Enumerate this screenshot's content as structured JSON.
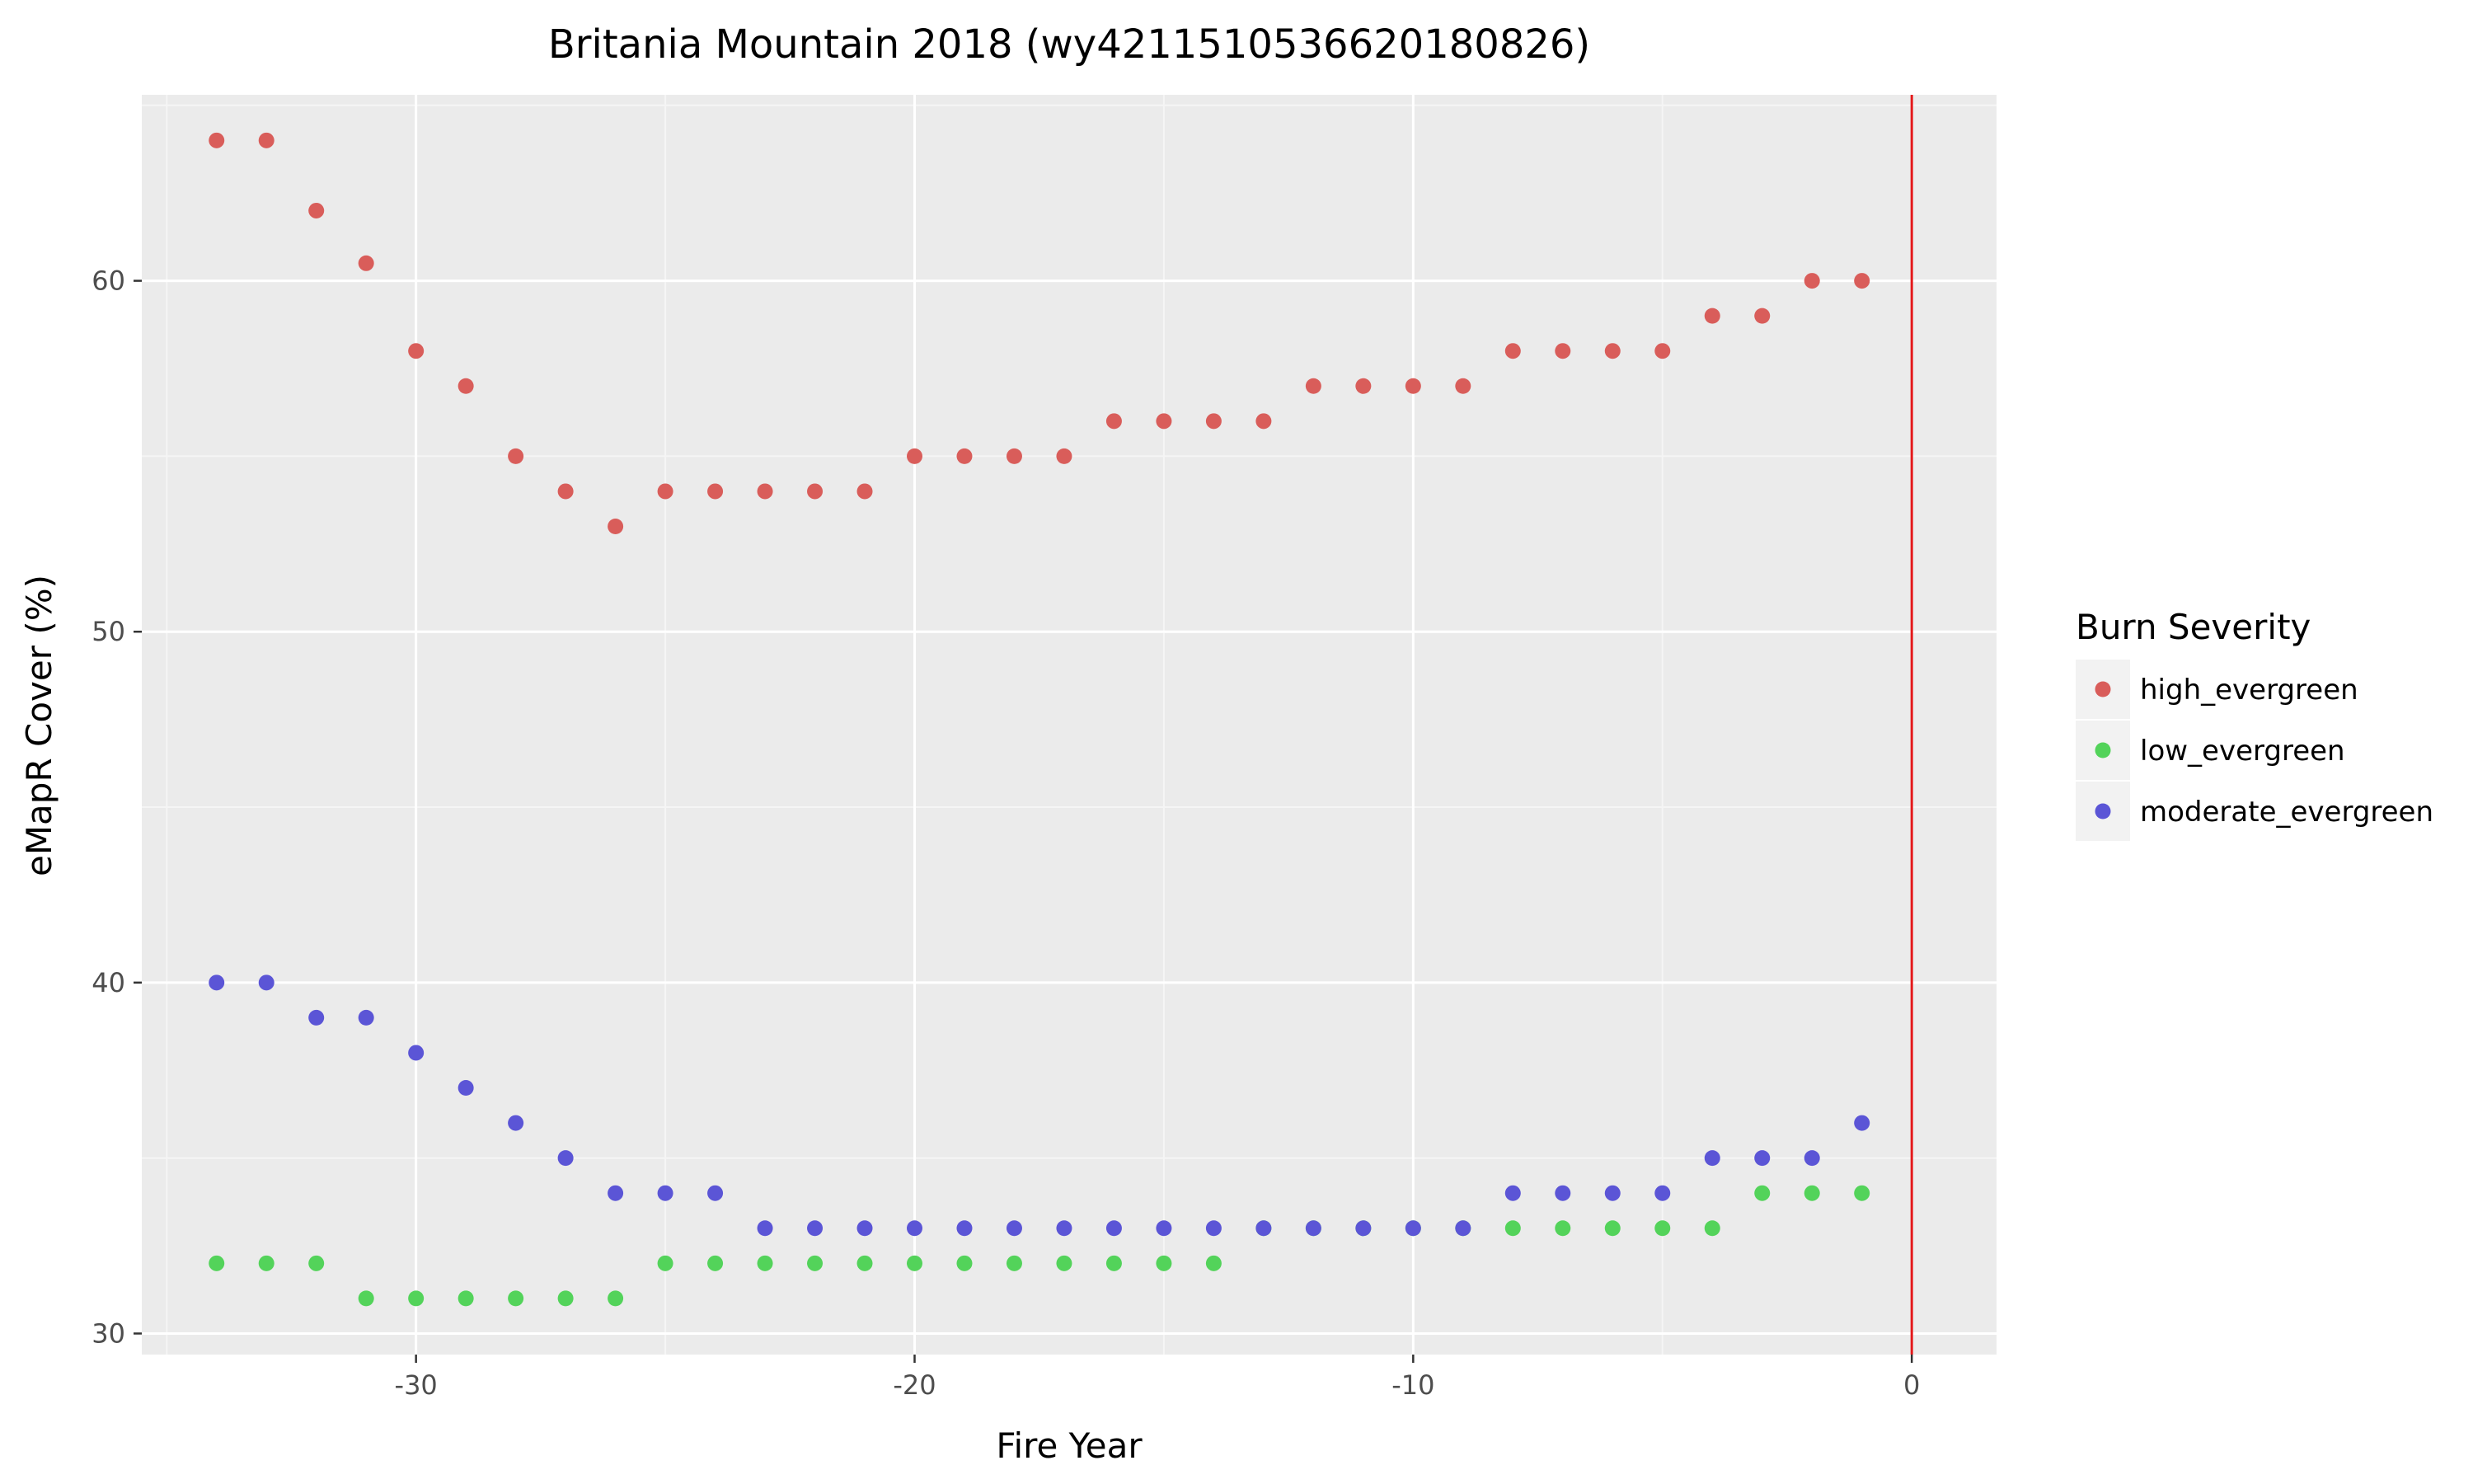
{
  "chart_data": {
    "type": "scatter",
    "title": "Britania Mountain 2018 (wy4211510536620180826)",
    "xlabel": "Fire Year",
    "ylabel": "eMapR Cover (%)",
    "xlim": [
      -35.5,
      1.7
    ],
    "ylim": [
      29.4,
      65.3
    ],
    "x_ticks": [
      -30,
      -20,
      -10,
      0
    ],
    "x_tick_labels": [
      "-30",
      "-20",
      "-10",
      "0"
    ],
    "y_ticks": [
      30,
      40,
      50,
      60
    ],
    "y_tick_labels": [
      "30",
      "40",
      "50",
      "60"
    ],
    "grid": true,
    "background": "#ebebeb",
    "vline": {
      "x": 0,
      "color": "#e41a1c"
    },
    "legend": {
      "title": "Burn Severity",
      "position": "right"
    },
    "series": [
      {
        "name": "high_evergreen",
        "color": "#d95d5a",
        "x": [
          -34,
          -33,
          -32,
          -31,
          -30,
          -29,
          -28,
          -27,
          -26,
          -25,
          -24,
          -23,
          -22,
          -21,
          -20,
          -19,
          -18,
          -17,
          -16,
          -15,
          -14,
          -13,
          -12,
          -11,
          -10,
          -9,
          -8,
          -7,
          -6,
          -5,
          -4,
          -3,
          -2,
          -1
        ],
        "y": [
          64,
          64,
          62,
          60.5,
          58,
          57,
          55,
          54,
          53,
          54,
          54,
          54,
          54,
          54,
          55,
          55,
          55,
          55,
          56,
          56,
          56,
          56,
          57,
          57,
          57,
          57,
          58,
          58,
          58,
          58,
          59,
          59,
          60,
          60
        ]
      },
      {
        "name": "low_evergreen",
        "color": "#53d35a",
        "x": [
          -34,
          -33,
          -32,
          -31,
          -30,
          -29,
          -28,
          -27,
          -26,
          -25,
          -24,
          -23,
          -22,
          -21,
          -20,
          -19,
          -18,
          -17,
          -16,
          -15,
          -14,
          -13,
          -12,
          -11,
          -10,
          -9,
          -8,
          -7,
          -6,
          -5,
          -4,
          -3,
          -2,
          -1
        ],
        "y": [
          32,
          32,
          32,
          31,
          31,
          31,
          31,
          31,
          31,
          32,
          32,
          32,
          32,
          32,
          32,
          32,
          32,
          32,
          32,
          32,
          32,
          33,
          33,
          33,
          33,
          33,
          33,
          33,
          33,
          33,
          33,
          34,
          34,
          34
        ]
      },
      {
        "name": "moderate_evergreen",
        "color": "#5b55d6",
        "x": [
          -34,
          -33,
          -32,
          -31,
          -30,
          -29,
          -28,
          -27,
          -26,
          -25,
          -24,
          -23,
          -22,
          -21,
          -20,
          -19,
          -18,
          -17,
          -16,
          -15,
          -14,
          -13,
          -12,
          -11,
          -10,
          -9,
          -8,
          -7,
          -6,
          -5,
          -4,
          -3,
          -2,
          -1
        ],
        "y": [
          40,
          40,
          39,
          39,
          38,
          37,
          36,
          35,
          34,
          34,
          34,
          33,
          33,
          33,
          33,
          33,
          33,
          33,
          33,
          33,
          33,
          33,
          33,
          33,
          33,
          33,
          34,
          34,
          34,
          34,
          35,
          35,
          35,
          36
        ]
      }
    ]
  }
}
